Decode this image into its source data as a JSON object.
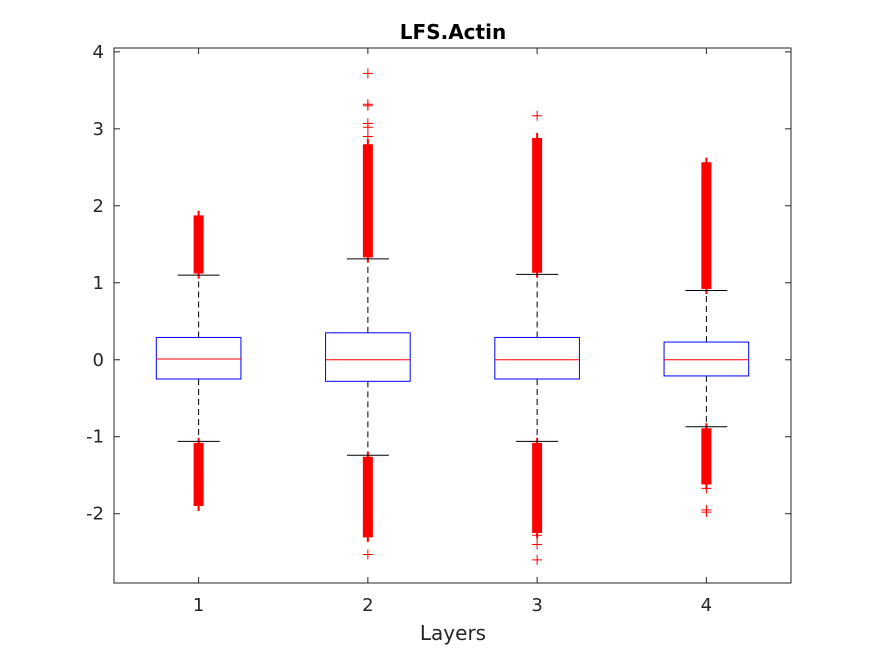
{
  "chart_data": {
    "type": "box",
    "title": "LFS.Actin",
    "xlabel": "Layers",
    "ylabel": "",
    "categories": [
      "1",
      "2",
      "3",
      "4"
    ],
    "xlim": [
      0.5,
      4.5
    ],
    "ylim": [
      -2.9,
      4.05
    ],
    "yticks": [
      -2,
      -1,
      0,
      1,
      2,
      3,
      4
    ],
    "ytick_labels": [
      "-2",
      "-1",
      "0",
      "1",
      "2",
      "3",
      "4"
    ],
    "grid": false,
    "legend": "none",
    "colors": {
      "box": "#0000ff",
      "median": "#ff0000",
      "whisker": "#000000",
      "outlier": "#ff0000",
      "axes": "#262626"
    },
    "boxes": [
      {
        "category": "1",
        "q1": -0.25,
        "median": 0.01,
        "q3": 0.29,
        "whisker_low": -1.06,
        "whisker_high": 1.1,
        "outliers_high_range": [
          1.12,
          1.87
        ],
        "outliers_low_range": [
          -1.9,
          -1.08
        ],
        "outliers_high_sparse": [
          1.75,
          1.8,
          1.84,
          1.87
        ],
        "outliers_low_sparse": [
          -1.55,
          -1.6,
          -1.65,
          -1.67,
          -1.72,
          -1.78,
          -1.88
        ]
      },
      {
        "category": "2",
        "q1": -0.28,
        "median": 0.0,
        "q3": 0.35,
        "whisker_low": -1.24,
        "whisker_high": 1.31,
        "outliers_high_range": [
          1.33,
          2.8
        ],
        "outliers_low_range": [
          -2.3,
          -1.26
        ],
        "outliers_high_sparse": [
          2.9,
          3.02,
          3.07,
          3.3,
          3.32,
          3.72
        ],
        "outliers_low_sparse": [
          -2.05,
          -2.1,
          -2.18,
          -2.25,
          -2.3,
          -2.53
        ]
      },
      {
        "category": "3",
        "q1": -0.25,
        "median": 0.0,
        "q3": 0.29,
        "whisker_low": -1.06,
        "whisker_high": 1.11,
        "outliers_high_range": [
          1.13,
          2.88
        ],
        "outliers_low_range": [
          -2.25,
          -1.08
        ],
        "outliers_high_sparse": [
          2.84,
          2.87,
          3.17
        ],
        "outliers_low_sparse": [
          -2.1,
          -2.28,
          -2.4,
          -2.6
        ]
      },
      {
        "category": "4",
        "q1": -0.21,
        "median": 0.0,
        "q3": 0.23,
        "whisker_low": -0.87,
        "whisker_high": 0.9,
        "outliers_high_range": [
          0.92,
          2.56
        ],
        "outliers_low_range": [
          -1.62,
          -0.89
        ],
        "outliers_high_sparse": [
          2.45,
          2.5,
          2.56
        ],
        "outliers_low_sparse": [
          -1.5,
          -1.55,
          -1.6,
          -1.67,
          -1.95,
          -1.98
        ]
      }
    ]
  }
}
